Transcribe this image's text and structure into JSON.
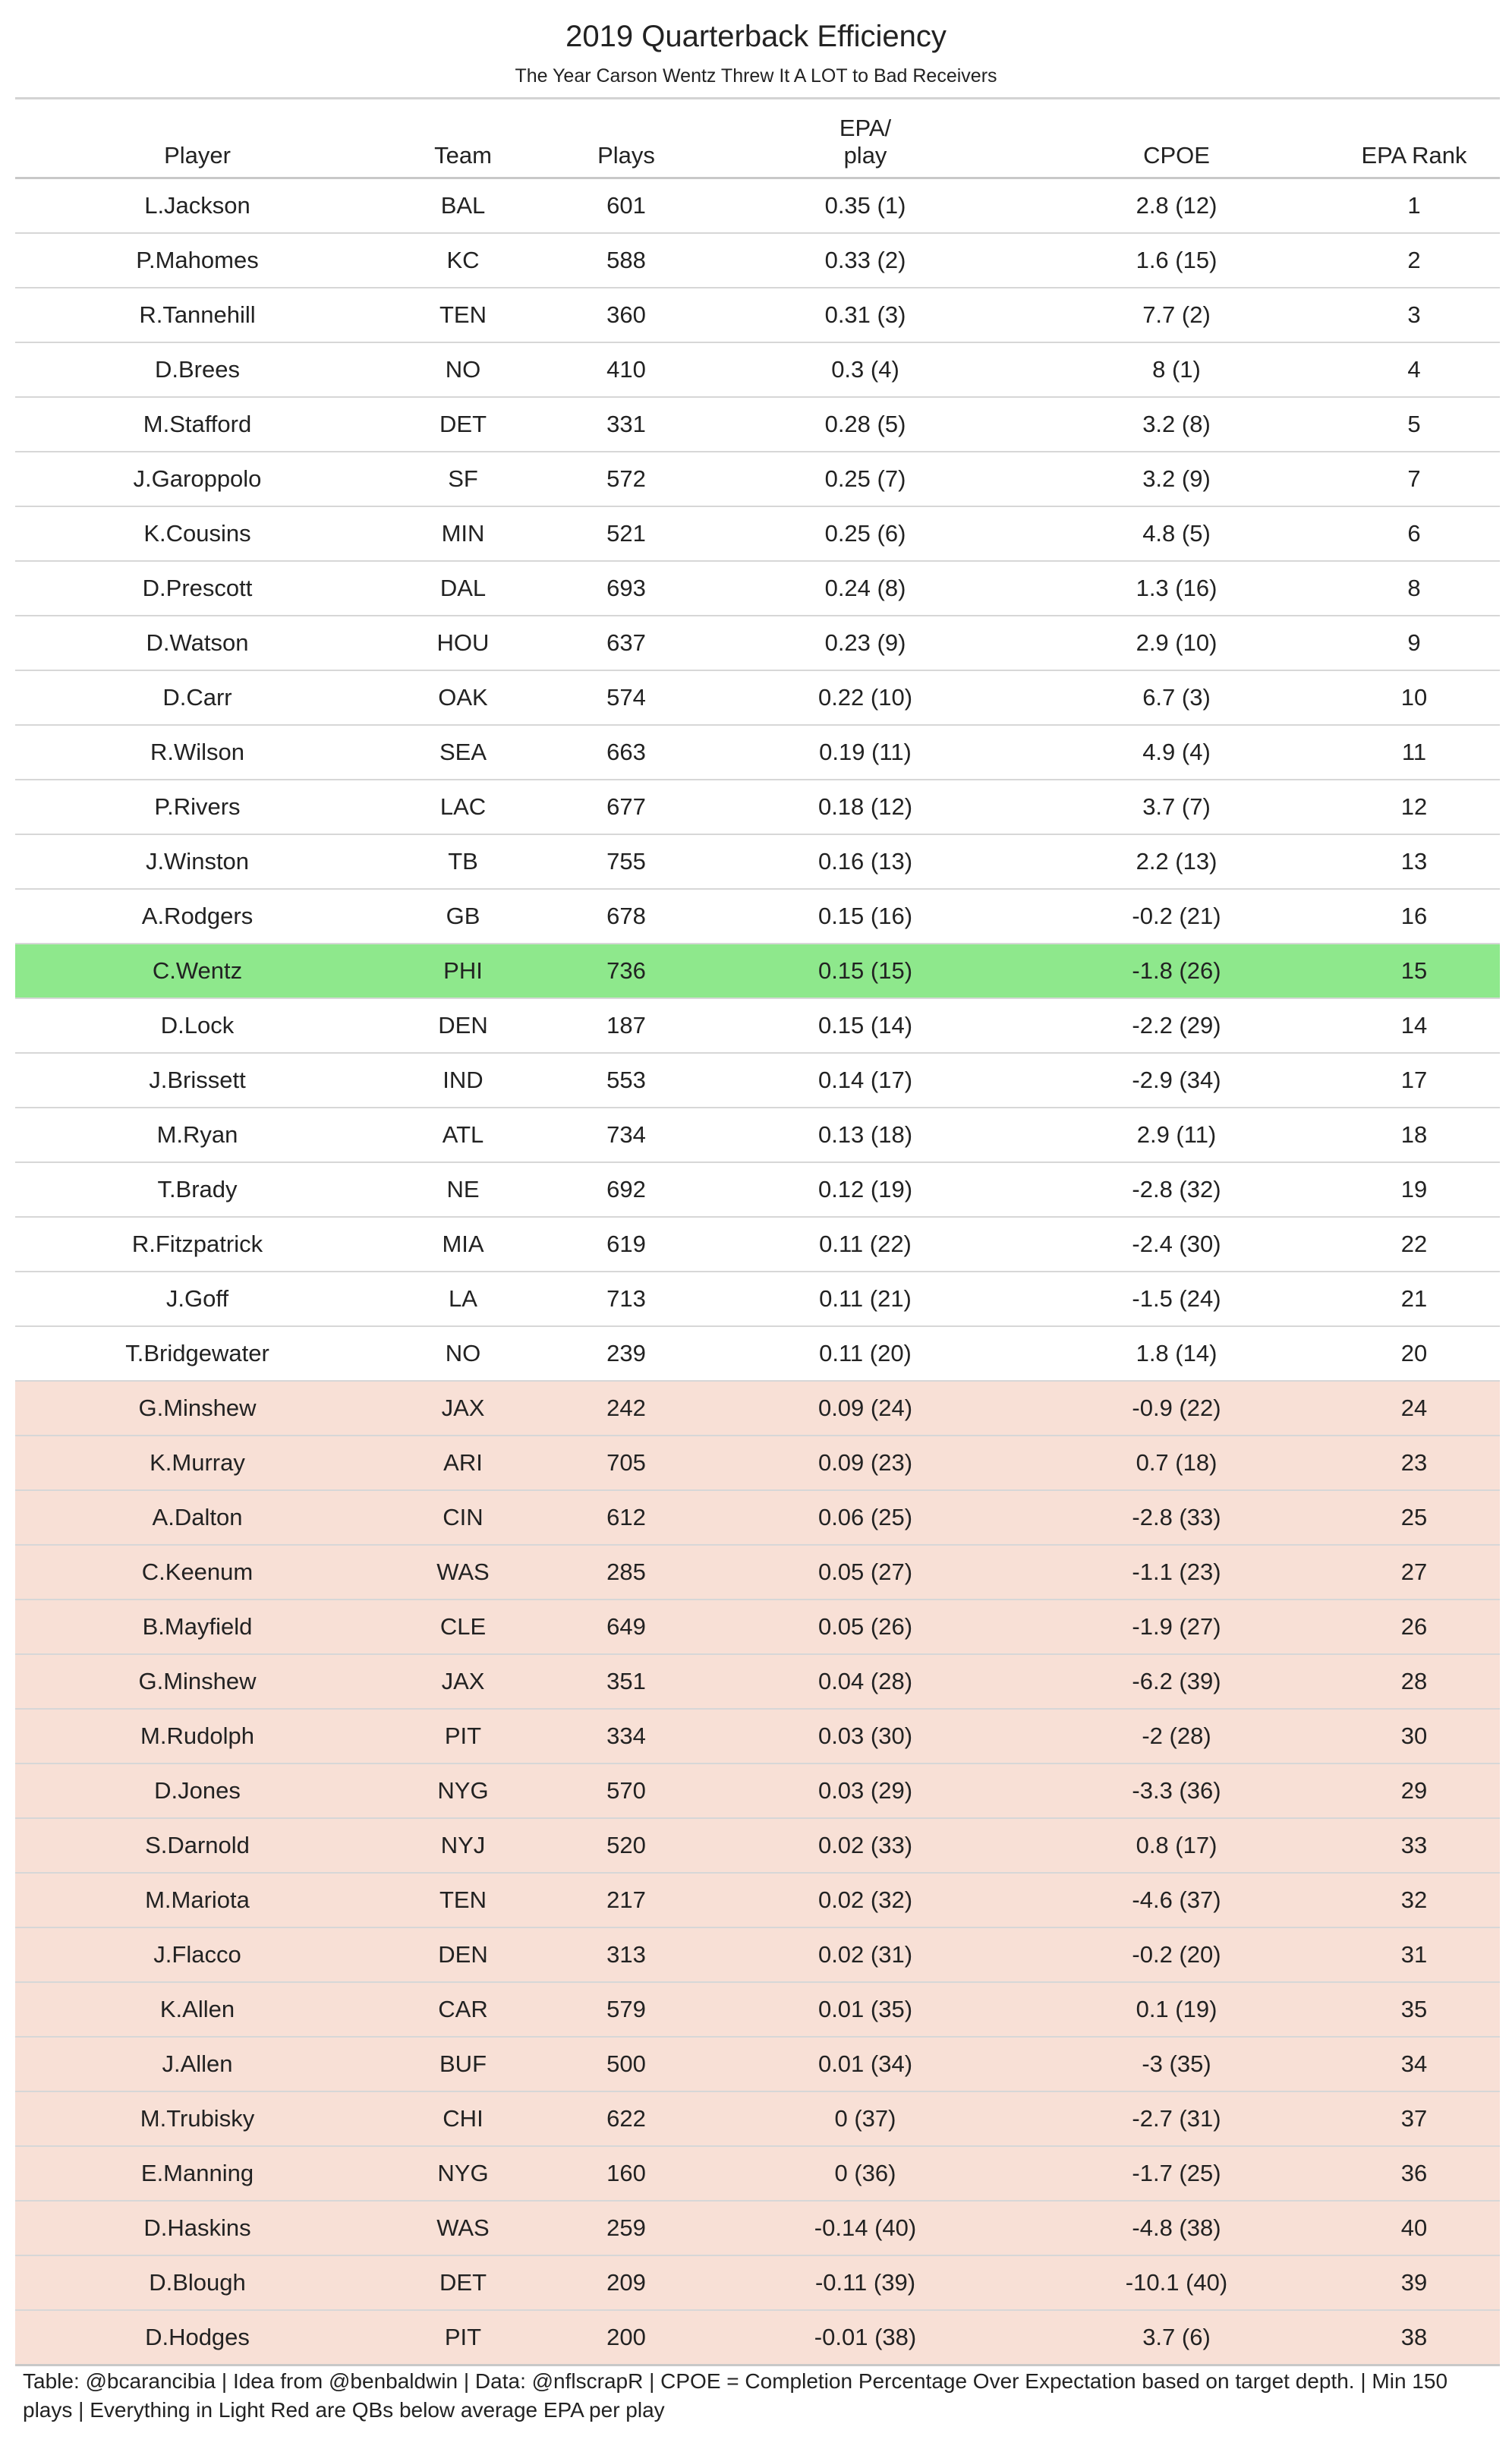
{
  "title": "2019 Quarterback Efficiency",
  "subtitle": "The Year Carson Wentz Threw It A LOT to Bad Receivers",
  "footnote": "Table: @bcarancibia | Idea from @benbaldwin | Data: @nflscrapR | CPOE = Completion Percentage Over Expectation based on target depth. | Min 150 plays | Everything in Light Red are QBs below average EPA per play",
  "colors": {
    "highlight": "#8ee88c",
    "below_average": "#f8e0d6"
  },
  "chart_data": {
    "type": "table",
    "columns": [
      "Player",
      "Team",
      "Plays",
      "EPA/ play",
      "CPOE",
      "EPA Rank"
    ],
    "highlight_row": 14,
    "below_average_from_row": 22,
    "rows": [
      [
        "L.Jackson",
        "BAL",
        "601",
        "0.35 (1)",
        "2.8 (12)",
        "1"
      ],
      [
        "P.Mahomes",
        "KC",
        "588",
        "0.33 (2)",
        "1.6 (15)",
        "2"
      ],
      [
        "R.Tannehill",
        "TEN",
        "360",
        "0.31 (3)",
        "7.7 (2)",
        "3"
      ],
      [
        "D.Brees",
        "NO",
        "410",
        "0.3 (4)",
        "8 (1)",
        "4"
      ],
      [
        "M.Stafford",
        "DET",
        "331",
        "0.28 (5)",
        "3.2 (8)",
        "5"
      ],
      [
        "J.Garoppolo",
        "SF",
        "572",
        "0.25 (7)",
        "3.2 (9)",
        "7"
      ],
      [
        "K.Cousins",
        "MIN",
        "521",
        "0.25 (6)",
        "4.8 (5)",
        "6"
      ],
      [
        "D.Prescott",
        "DAL",
        "693",
        "0.24 (8)",
        "1.3 (16)",
        "8"
      ],
      [
        "D.Watson",
        "HOU",
        "637",
        "0.23 (9)",
        "2.9 (10)",
        "9"
      ],
      [
        "D.Carr",
        "OAK",
        "574",
        "0.22 (10)",
        "6.7 (3)",
        "10"
      ],
      [
        "R.Wilson",
        "SEA",
        "663",
        "0.19 (11)",
        "4.9 (4)",
        "11"
      ],
      [
        "P.Rivers",
        "LAC",
        "677",
        "0.18 (12)",
        "3.7 (7)",
        "12"
      ],
      [
        "J.Winston",
        "TB",
        "755",
        "0.16 (13)",
        "2.2 (13)",
        "13"
      ],
      [
        "A.Rodgers",
        "GB",
        "678",
        "0.15 (16)",
        "-0.2 (21)",
        "16"
      ],
      [
        "C.Wentz",
        "PHI",
        "736",
        "0.15 (15)",
        "-1.8 (26)",
        "15"
      ],
      [
        "D.Lock",
        "DEN",
        "187",
        "0.15 (14)",
        "-2.2 (29)",
        "14"
      ],
      [
        "J.Brissett",
        "IND",
        "553",
        "0.14 (17)",
        "-2.9 (34)",
        "17"
      ],
      [
        "M.Ryan",
        "ATL",
        "734",
        "0.13 (18)",
        "2.9 (11)",
        "18"
      ],
      [
        "T.Brady",
        "NE",
        "692",
        "0.12 (19)",
        "-2.8 (32)",
        "19"
      ],
      [
        "R.Fitzpatrick",
        "MIA",
        "619",
        "0.11 (22)",
        "-2.4 (30)",
        "22"
      ],
      [
        "J.Goff",
        "LA",
        "713",
        "0.11 (21)",
        "-1.5 (24)",
        "21"
      ],
      [
        "T.Bridgewater",
        "NO",
        "239",
        "0.11 (20)",
        "1.8 (14)",
        "20"
      ],
      [
        "G.Minshew",
        "JAX",
        "242",
        "0.09 (24)",
        "-0.9 (22)",
        "24"
      ],
      [
        "K.Murray",
        "ARI",
        "705",
        "0.09 (23)",
        "0.7 (18)",
        "23"
      ],
      [
        "A.Dalton",
        "CIN",
        "612",
        "0.06 (25)",
        "-2.8 (33)",
        "25"
      ],
      [
        "C.Keenum",
        "WAS",
        "285",
        "0.05 (27)",
        "-1.1 (23)",
        "27"
      ],
      [
        "B.Mayfield",
        "CLE",
        "649",
        "0.05 (26)",
        "-1.9 (27)",
        "26"
      ],
      [
        "G.Minshew",
        "JAX",
        "351",
        "0.04 (28)",
        "-6.2 (39)",
        "28"
      ],
      [
        "M.Rudolph",
        "PIT",
        "334",
        "0.03 (30)",
        "-2 (28)",
        "30"
      ],
      [
        "D.Jones",
        "NYG",
        "570",
        "0.03 (29)",
        "-3.3 (36)",
        "29"
      ],
      [
        "S.Darnold",
        "NYJ",
        "520",
        "0.02 (33)",
        "0.8 (17)",
        "33"
      ],
      [
        "M.Mariota",
        "TEN",
        "217",
        "0.02 (32)",
        "-4.6 (37)",
        "32"
      ],
      [
        "J.Flacco",
        "DEN",
        "313",
        "0.02 (31)",
        "-0.2 (20)",
        "31"
      ],
      [
        "K.Allen",
        "CAR",
        "579",
        "0.01 (35)",
        "0.1 (19)",
        "35"
      ],
      [
        "J.Allen",
        "BUF",
        "500",
        "0.01 (34)",
        "-3 (35)",
        "34"
      ],
      [
        "M.Trubisky",
        "CHI",
        "622",
        "0 (37)",
        "-2.7 (31)",
        "37"
      ],
      [
        "E.Manning",
        "NYG",
        "160",
        "0 (36)",
        "-1.7 (25)",
        "36"
      ],
      [
        "D.Haskins",
        "WAS",
        "259",
        "-0.14 (40)",
        "-4.8 (38)",
        "40"
      ],
      [
        "D.Blough",
        "DET",
        "209",
        "-0.11 (39)",
        "-10.1 (40)",
        "39"
      ],
      [
        "D.Hodges",
        "PIT",
        "200",
        "-0.01 (38)",
        "3.7 (6)",
        "38"
      ]
    ]
  }
}
